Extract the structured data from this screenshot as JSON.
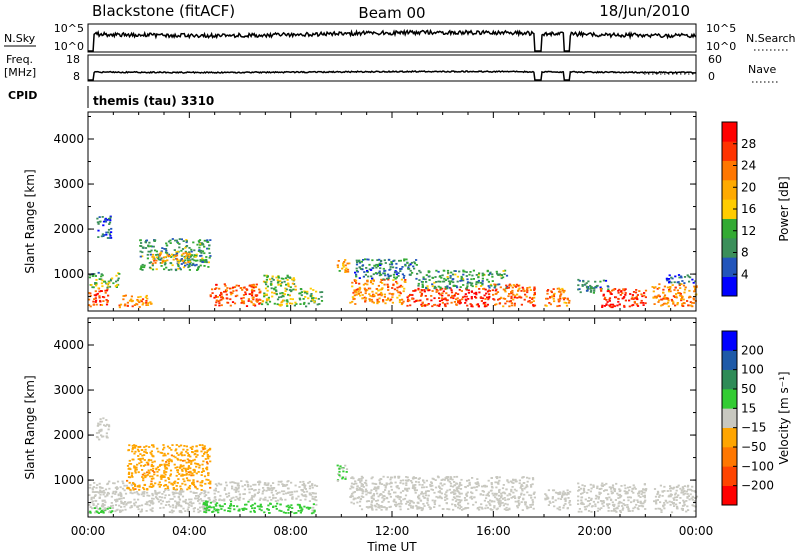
{
  "header": {
    "station": "Blackstone (fitACF)",
    "beam": "Beam 00",
    "date": "18/Jun/2010"
  },
  "strip_nsky": {
    "left_label": "N.Sky",
    "left_ticks": [
      "10^5",
      "10^0"
    ],
    "right_label": "N.Search",
    "right_ticks": [
      "10^5",
      "10^0"
    ]
  },
  "strip_freq": {
    "left_label_1": "Freq.",
    "left_label_2": "[MHz]",
    "left_ticks": [
      "18",
      "8"
    ],
    "right_label": "Nave",
    "right_ticks": [
      "60",
      "0"
    ]
  },
  "cpid": {
    "label": "CPID",
    "value": "themis (tau) 3310"
  },
  "colors": {
    "power_scale": [
      "#0000ff",
      "#2255bb",
      "#3b8f5a",
      "#33aa33",
      "#ffcc00",
      "#ffaa00",
      "#ff7700",
      "#ff3300",
      "#ff0000"
    ],
    "velocity_scale": [
      "#ff0000",
      "#ff4400",
      "#ff7700",
      "#ffa500",
      "#c8c8c0",
      "#33cc33",
      "#2e8b57",
      "#1e5aa8",
      "#0000ff"
    ]
  },
  "chart_data": [
    {
      "type": "heatmap",
      "name": "power",
      "ylabel": "Slant Range [km]",
      "yticks": [
        "4000",
        "3000",
        "2000",
        "1000"
      ],
      "ylim": [
        180,
        4600
      ],
      "xlim": [
        "00:00",
        "24:00"
      ],
      "colorbar_label": "Power [dB]",
      "colorbar_ticks": [
        "28",
        "24",
        "20",
        "16",
        "12",
        "8",
        "4"
      ],
      "colorbar_range": [
        0,
        32
      ],
      "regions": [
        {
          "t0": 0.0,
          "t1": 0.8,
          "r0": 300,
          "r1": 700,
          "value": 26
        },
        {
          "t0": 0.0,
          "t1": 1.2,
          "r0": 700,
          "r1": 1050,
          "value": 12
        },
        {
          "t0": 0.3,
          "t1": 0.9,
          "r0": 1800,
          "r1": 2300,
          "value": 6
        },
        {
          "t0": 1.2,
          "t1": 2.5,
          "r0": 280,
          "r1": 550,
          "value": 22
        },
        {
          "t0": 2.0,
          "t1": 4.8,
          "r0": 1100,
          "r1": 1800,
          "value": 10
        },
        {
          "t0": 2.5,
          "t1": 4.0,
          "r0": 1250,
          "r1": 1500,
          "value": 20
        },
        {
          "t0": 4.8,
          "t1": 6.8,
          "r0": 300,
          "r1": 800,
          "value": 25
        },
        {
          "t0": 6.8,
          "t1": 8.2,
          "r0": 300,
          "r1": 1000,
          "value": 14
        },
        {
          "t0": 8.3,
          "t1": 9.2,
          "r0": 300,
          "r1": 700,
          "value": 12
        },
        {
          "t0": 9.8,
          "t1": 10.3,
          "r0": 1050,
          "r1": 1350,
          "value": 18
        },
        {
          "t0": 10.3,
          "t1": 12.5,
          "r0": 350,
          "r1": 900,
          "value": 22
        },
        {
          "t0": 10.5,
          "t1": 13.0,
          "r0": 900,
          "r1": 1350,
          "value": 8
        },
        {
          "t0": 12.5,
          "t1": 16.0,
          "r0": 300,
          "r1": 700,
          "value": 27
        },
        {
          "t0": 13.0,
          "t1": 16.5,
          "r0": 700,
          "r1": 1100,
          "value": 10
        },
        {
          "t0": 16.0,
          "t1": 17.6,
          "r0": 300,
          "r1": 800,
          "value": 24
        },
        {
          "t0": 18.0,
          "t1": 19.0,
          "r0": 300,
          "r1": 700,
          "value": 22
        },
        {
          "t0": 19.3,
          "t1": 20.5,
          "r0": 600,
          "r1": 900,
          "value": 8
        },
        {
          "t0": 20.2,
          "t1": 22.0,
          "r0": 280,
          "r1": 700,
          "value": 28
        },
        {
          "t0": 22.2,
          "t1": 24.0,
          "r0": 300,
          "r1": 800,
          "value": 22
        },
        {
          "t0": 22.8,
          "t1": 24.0,
          "r0": 800,
          "r1": 1000,
          "value": 6
        }
      ]
    },
    {
      "type": "heatmap",
      "name": "velocity",
      "ylabel": "Slant Range [km]",
      "yticks": [
        "4000",
        "3000",
        "2000",
        "1000"
      ],
      "ylim": [
        180,
        4600
      ],
      "xlim": [
        "00:00",
        "24:00"
      ],
      "xticks": [
        "00:00",
        "04:00",
        "08:00",
        "12:00",
        "16:00",
        "20:00",
        "00:00"
      ],
      "xlabel": "Time UT",
      "colorbar_label": "Velocity [m s⁻¹]",
      "colorbar_ticks": [
        "200",
        "100",
        "50",
        "15",
        "−15",
        "−50",
        "−100",
        "−200"
      ],
      "colorbar_range": [
        -250,
        250
      ],
      "regions": [
        {
          "t0": 0.0,
          "t1": 1.8,
          "r0": 300,
          "r1": 1000,
          "value": 0
        },
        {
          "t0": 0.0,
          "t1": 1.0,
          "r0": 280,
          "r1": 400,
          "value": 40
        },
        {
          "t0": 0.3,
          "t1": 0.8,
          "r0": 1900,
          "r1": 2400,
          "value": 0
        },
        {
          "t0": 1.5,
          "t1": 4.8,
          "r0": 800,
          "r1": 1800,
          "value": -70
        },
        {
          "t0": 1.8,
          "t1": 5.0,
          "r0": 300,
          "r1": 800,
          "value": 0
        },
        {
          "t0": 4.5,
          "t1": 7.0,
          "r0": 300,
          "r1": 550,
          "value": 60
        },
        {
          "t0": 5.0,
          "t1": 9.0,
          "r0": 550,
          "r1": 1000,
          "value": 0
        },
        {
          "t0": 7.0,
          "t1": 9.0,
          "r0": 280,
          "r1": 500,
          "value": 40
        },
        {
          "t0": 10.3,
          "t1": 17.6,
          "r0": 350,
          "r1": 1100,
          "value": 0
        },
        {
          "t0": 9.8,
          "t1": 10.3,
          "r0": 1000,
          "r1": 1350,
          "value": 30
        },
        {
          "t0": 18.0,
          "t1": 19.0,
          "r0": 350,
          "r1": 800,
          "value": 0
        },
        {
          "t0": 19.3,
          "t1": 22.0,
          "r0": 300,
          "r1": 950,
          "value": 0
        },
        {
          "t0": 22.3,
          "t1": 24.0,
          "r0": 300,
          "r1": 900,
          "value": 0
        }
      ]
    }
  ]
}
